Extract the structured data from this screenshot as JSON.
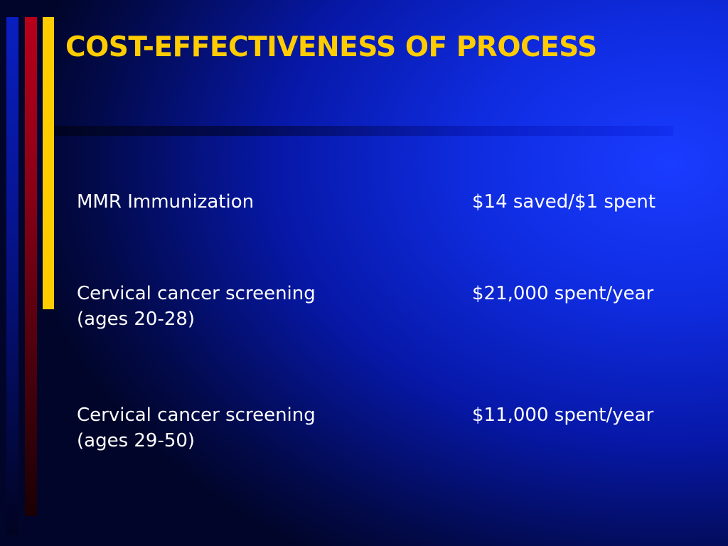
{
  "slide": {
    "title": "COST-EFFECTIVENESS OF PROCESS",
    "colors": {
      "background": "#0f2ce0",
      "title": "#ffcc00",
      "text": "#ffffff",
      "accent_bar_1": "#0a1fc0",
      "accent_bar_2": "#b8001a",
      "accent_bar_3": "#ffcc00"
    },
    "items": [
      {
        "label_line1": "MMR Immunization",
        "label_line2": "",
        "value": "$14 saved/$1 spent"
      },
      {
        "label_line1": "Cervical cancer screening",
        "label_line2": "(ages 20-28)",
        "value": "$21,000 spent/year"
      },
      {
        "label_line1": "Cervical cancer screening",
        "label_line2": "(ages 29-50)",
        "value": "$11,000 spent/year"
      }
    ]
  }
}
